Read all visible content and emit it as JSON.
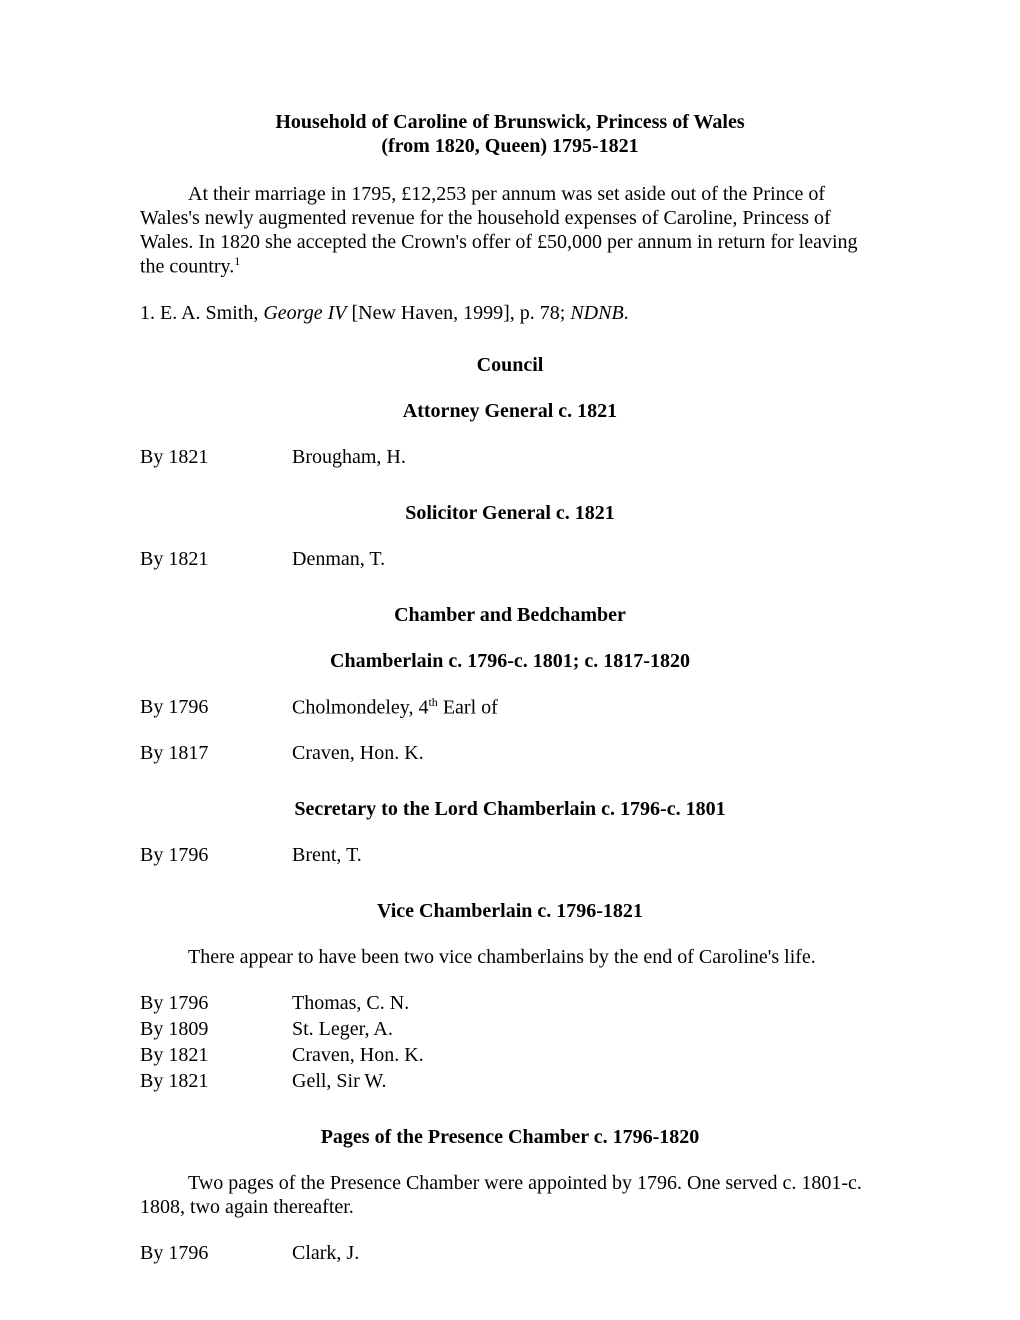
{
  "title_line1": "Household of Caroline of Brunswick, Princess of Wales",
  "title_line2": "(from 1820, Queen) 1795-1821",
  "intro_para": "At their marriage in 1795, £12,253 per annum was set aside out of the Prince of Wales's newly augmented revenue for the household expenses of Caroline, Princess of Wales.  In 1820 she accepted the Crown's offer of £50,000 per annum in return for leaving the country.",
  "footnote_sup": "1",
  "footnote_prefix": "1. E. A. Smith, ",
  "footnote_italic": "George IV",
  "footnote_mid": " [New Haven, 1999], p. 78; ",
  "footnote_italic2": "NDNB",
  "footnote_suffix": ".",
  "sections": {
    "council": {
      "heading": "Council",
      "attorney": {
        "heading": "Attorney General c. 1821",
        "entries": [
          {
            "date": "By 1821",
            "name": "Brougham, H."
          }
        ]
      },
      "solicitor": {
        "heading": "Solicitor General c. 1821",
        "entries": [
          {
            "date": "By 1821",
            "name": "Denman, T."
          }
        ]
      }
    },
    "chamber": {
      "heading": "Chamber and Bedchamber",
      "chamberlain": {
        "heading": "Chamberlain c. 1796-c. 1801; c. 1817-1820",
        "entries": [
          {
            "date": "By 1796",
            "name_pre": "Cholmondeley, 4",
            "name_sup": "th",
            "name_post": " Earl of"
          },
          {
            "date": "By 1817",
            "name": "Craven, Hon. K."
          }
        ]
      },
      "secretary": {
        "heading": "Secretary to the Lord Chamberlain c. 1796-c. 1801",
        "entries": [
          {
            "date": "By 1796",
            "name": "Brent, T."
          }
        ]
      },
      "vice": {
        "heading": "Vice Chamberlain c. 1796-1821",
        "note": "There appear to have been two vice chamberlains by the end of Caroline's life.",
        "entries": [
          {
            "date": "By 1796",
            "name": "Thomas, C. N."
          },
          {
            "date": "By 1809",
            "name": "St. Leger, A."
          },
          {
            "date": "By 1821",
            "name": "Craven, Hon. K."
          },
          {
            "date": "By 1821",
            "name": "Gell, Sir W."
          }
        ]
      },
      "pages": {
        "heading": "Pages of the Presence Chamber c. 1796-1820",
        "note": "Two pages of the Presence Chamber were appointed by 1796.  One served c. 1801-c. 1808, two again thereafter.",
        "entries": [
          {
            "date": "By 1796",
            "name": "Clark, J."
          }
        ]
      }
    }
  }
}
